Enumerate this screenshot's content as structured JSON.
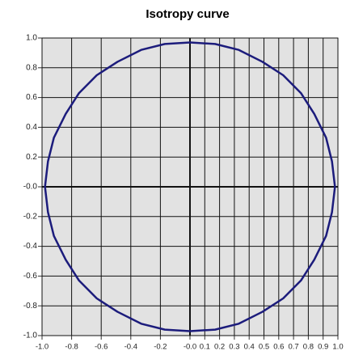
{
  "chart_data": {
    "type": "line",
    "title": "Isotropy curve",
    "color": "#1c1c7c",
    "grid": true,
    "x": [
      0.98,
      0.96,
      0.92,
      0.84,
      0.75,
      0.63,
      0.49,
      0.33,
      0.17,
      0,
      -0.17,
      -0.33,
      -0.49,
      -0.63,
      -0.75,
      -0.84,
      -0.92,
      -0.96,
      -0.98,
      -0.96,
      -0.92,
      -0.84,
      -0.75,
      -0.63,
      -0.49,
      -0.33,
      -0.17,
      0,
      0.17,
      0.33,
      0.49,
      0.63,
      0.75,
      0.84,
      0.92,
      0.96,
      0.98
    ],
    "values": [
      0,
      0.17,
      0.33,
      0.49,
      0.63,
      0.75,
      0.84,
      0.92,
      0.96,
      0.97,
      0.96,
      0.92,
      0.84,
      0.75,
      0.63,
      0.49,
      0.33,
      0.17,
      0,
      -0.17,
      -0.33,
      -0.49,
      -0.63,
      -0.75,
      -0.84,
      -0.92,
      -0.96,
      -0.97,
      -0.96,
      -0.92,
      -0.84,
      -0.75,
      -0.63,
      -0.49,
      -0.33,
      -0.17,
      0
    ],
    "xlim": [
      -1,
      1
    ],
    "ylim": [
      -1,
      1
    ],
    "xticks": [
      {
        "value": -1,
        "label": "-1.0"
      },
      {
        "value": -0.8,
        "label": "-0.8"
      },
      {
        "value": -0.6,
        "label": "-0.6"
      },
      {
        "value": -0.4,
        "label": "-0.4"
      },
      {
        "value": -0.2,
        "label": "-0.2"
      },
      {
        "value": 0,
        "label": "-0.0"
      },
      {
        "value": 0.1,
        "label": "0.1"
      },
      {
        "value": 0.2,
        "label": "0.2"
      },
      {
        "value": 0.3,
        "label": "0.3"
      },
      {
        "value": 0.4,
        "label": "0.4"
      },
      {
        "value": 0.5,
        "label": "0.5"
      },
      {
        "value": 0.6,
        "label": "0.6"
      },
      {
        "value": 0.7,
        "label": "0.7"
      },
      {
        "value": 0.8,
        "label": "0.8"
      },
      {
        "value": 0.9,
        "label": "0.9"
      },
      {
        "value": 1,
        "label": "1.0"
      }
    ],
    "yticks": [
      {
        "value": 1,
        "label": "1.0"
      },
      {
        "value": 0.8,
        "label": "0.8"
      },
      {
        "value": 0.6,
        "label": "0.6"
      },
      {
        "value": 0.4,
        "label": "0.4"
      },
      {
        "value": 0.2,
        "label": "0.2"
      },
      {
        "value": 0,
        "label": "-0.0"
      },
      {
        "value": -0.2,
        "label": "-0.2"
      },
      {
        "value": -0.4,
        "label": "-0.4"
      },
      {
        "value": -0.6,
        "label": "-0.6"
      },
      {
        "value": -0.8,
        "label": "-0.8"
      },
      {
        "value": -1,
        "label": "-1.0"
      }
    ]
  }
}
